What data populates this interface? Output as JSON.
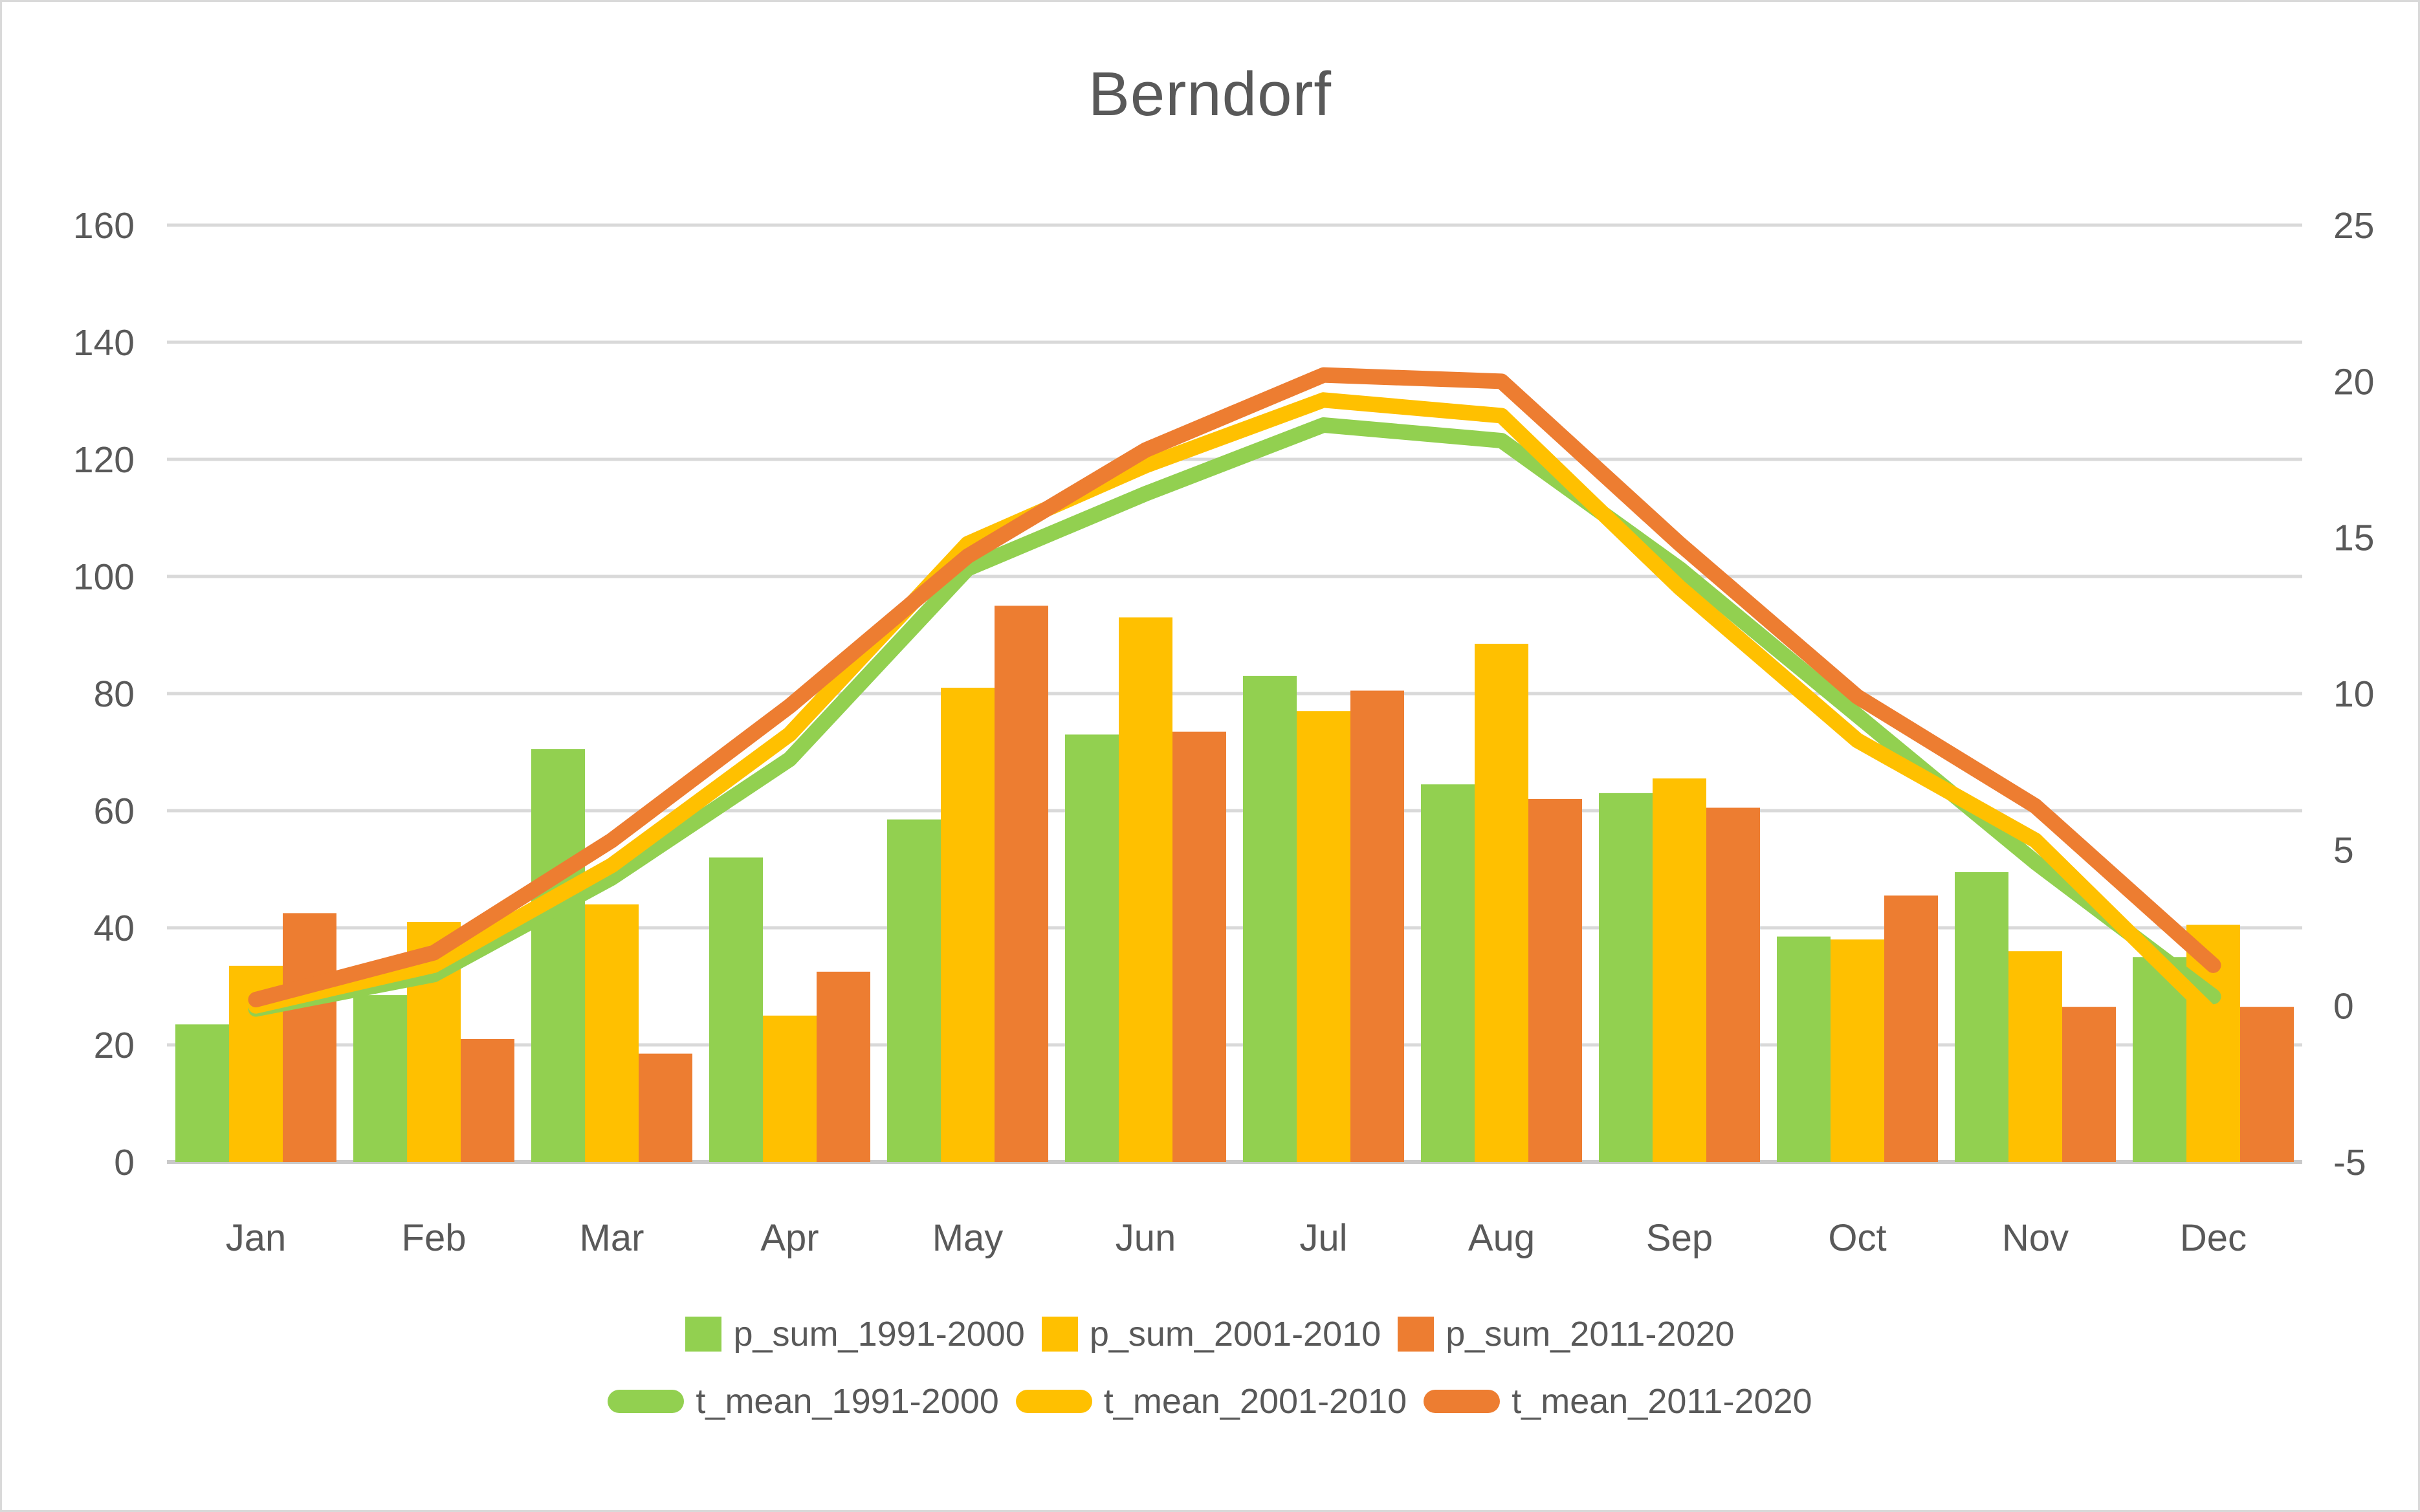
{
  "title": "Berndorf",
  "colors": {
    "green": "#92D050",
    "yellow": "#FFC000",
    "orange": "#ED7D31",
    "grid": "#D9D9D9",
    "axis_line": "#C9C9C9",
    "text": "#595959"
  },
  "chart_data": {
    "type": "combo-bar-line",
    "title": "Berndorf",
    "categories": [
      "Jan",
      "Feb",
      "Mar",
      "Apr",
      "May",
      "Jun",
      "Jul",
      "Aug",
      "Sep",
      "Oct",
      "Nov",
      "Dec"
    ],
    "bar_series": [
      {
        "name": "p_sum_1991-2000",
        "color_key": "green",
        "axis": "left",
        "values": [
          23.5,
          28.5,
          70.5,
          52,
          58.5,
          73,
          83,
          64.5,
          63,
          38.5,
          49.5,
          35
        ]
      },
      {
        "name": "p_sum_2001-2010",
        "color_key": "yellow",
        "axis": "left",
        "values": [
          33.5,
          41,
          44,
          25,
          81,
          93,
          77,
          88.5,
          65.5,
          38,
          36,
          40.5
        ]
      },
      {
        "name": "p_sum_2011-2020",
        "color_key": "orange",
        "axis": "left",
        "values": [
          42.5,
          21,
          18.5,
          32.5,
          95,
          73.5,
          80.5,
          62,
          60.5,
          45.5,
          26.5,
          26.5
        ]
      }
    ],
    "line_series": [
      {
        "name": "t_mean_1991-2000",
        "color_key": "green",
        "axis": "right",
        "values": [
          -0.1,
          1.0,
          4.1,
          7.9,
          14.0,
          16.4,
          18.6,
          18.1,
          14.0,
          9.3,
          4.6,
          0.3
        ]
      },
      {
        "name": "t_mean_2001-2010",
        "color_key": "yellow",
        "axis": "right",
        "values": [
          0.0,
          1.3,
          4.5,
          8.7,
          14.8,
          17.3,
          19.4,
          18.9,
          13.4,
          8.5,
          5.3,
          -0.3
        ]
      },
      {
        "name": "t_mean_2011-2020",
        "color_key": "orange",
        "axis": "right",
        "values": [
          0.2,
          1.7,
          5.3,
          9.6,
          14.4,
          17.8,
          20.2,
          20.0,
          14.8,
          9.9,
          6.4,
          1.3
        ]
      }
    ],
    "left_axis": {
      "min": 0,
      "max": 160,
      "step": 20
    },
    "right_axis": {
      "min": -5,
      "max": 25,
      "step": 5
    },
    "grid": true,
    "legend_position": "bottom"
  }
}
